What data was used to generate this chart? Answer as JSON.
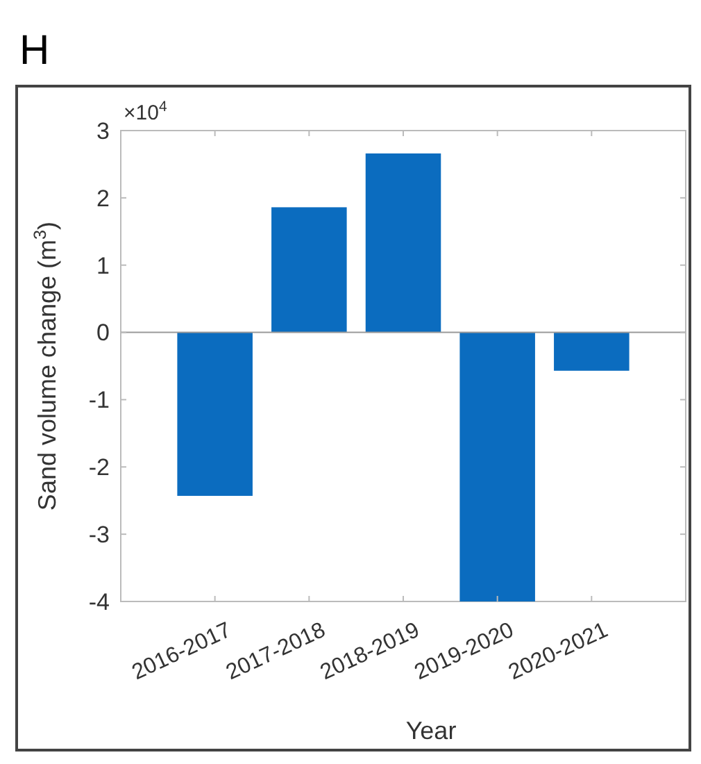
{
  "chart_data": {
    "type": "bar",
    "title": "H",
    "xlabel": "Year",
    "ylabel": "Sand volume change (m$^{3}$)",
    "annotations": [
      "×10$^{4}$"
    ],
    "categories": [
      "2016-2017",
      "2017-2018",
      "2018-2019",
      "2019-2020",
      "2020-2021"
    ],
    "values": [
      -2.43,
      1.86,
      2.66,
      -4,
      -0.57
    ],
    "color": "#0b6cbf",
    "ylim": [
      -4,
      3
    ],
    "yticks": [
      -4,
      -3,
      -2,
      -1,
      0,
      1,
      2,
      3
    ],
    "ref_lines": [
      {
        "axis": "y",
        "value": 0,
        "color": "#999999"
      }
    ]
  }
}
